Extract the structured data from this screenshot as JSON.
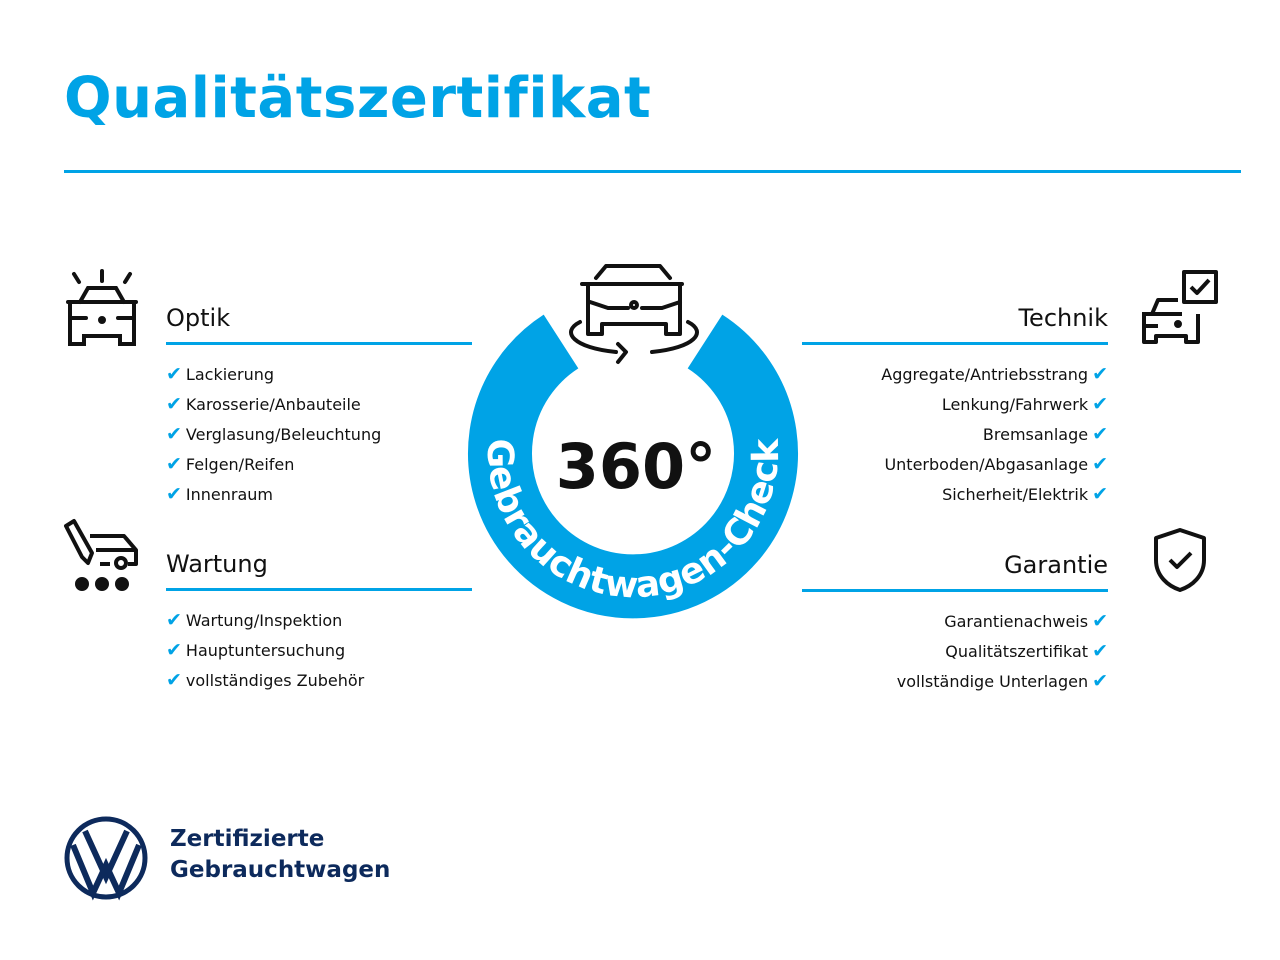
{
  "title": "Qualitätszertifikat",
  "colors": {
    "accent": "#00a3e6",
    "vw_navy": "#0d2a5c"
  },
  "badge": {
    "value": "360°",
    "label": "Gebrauchtwagen-Check",
    "icon": "car-rotate-icon"
  },
  "sections": {
    "optik": {
      "title": "Optik",
      "icon": "car-shine-icon",
      "items": [
        "Lackierung",
        "Karosserie/Anbauteile",
        "Verglasung/Beleuchtung",
        "Felgen/Reifen",
        "Innenraum"
      ]
    },
    "wartung": {
      "title": "Wartung",
      "icon": "car-service-icon",
      "items": [
        "Wartung/Inspektion",
        "Hauptuntersuchung",
        "vollständiges Zubehör"
      ]
    },
    "technik": {
      "title": "Technik",
      "icon": "car-checklist-icon",
      "items": [
        "Aggregate/Antriebsstrang",
        "Lenkung/Fahrwerk",
        "Bremsanlage",
        "Unterboden/Abgasanlage",
        "Sicherheit/Elektrik"
      ]
    },
    "garantie": {
      "title": "Garantie",
      "icon": "shield-check-icon",
      "items": [
        "Garantienachweis",
        "Qualitätszertifikat",
        "vollständige Unterlagen"
      ]
    }
  },
  "check_glyph": "✔",
  "footer": {
    "line1": "Zertifizierte",
    "line2": "Gebrauchtwagen"
  }
}
